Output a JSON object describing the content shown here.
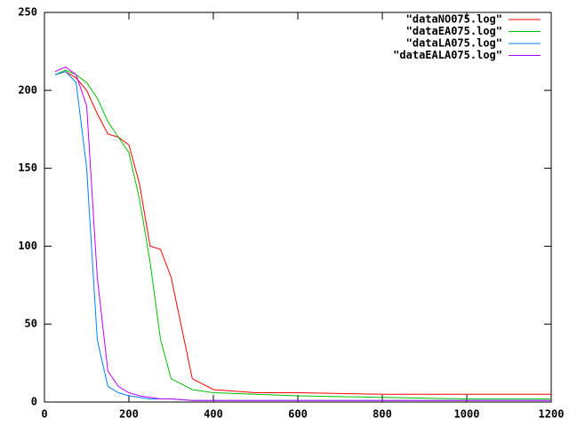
{
  "chart_data": {
    "type": "line",
    "x": [
      25,
      50,
      75,
      100,
      125,
      150,
      175,
      200,
      225,
      250,
      275,
      300,
      350,
      400,
      500,
      600,
      800,
      1000,
      1200
    ],
    "series": [
      {
        "name": "\"dataNO075.log\"",
        "color": "#ff0000",
        "values": [
          210,
          212,
          208,
          200,
          185,
          172,
          170,
          165,
          140,
          100,
          98,
          80,
          15,
          8,
          6,
          6,
          5,
          5,
          5
        ]
      },
      {
        "name": "\"dataEA075.log\"",
        "color": "#00c000",
        "values": [
          210,
          213,
          210,
          205,
          195,
          180,
          170,
          160,
          130,
          90,
          40,
          15,
          8,
          6,
          5,
          4,
          3,
          2,
          2
        ]
      },
      {
        "name": "\"dataLA075.log\"",
        "color": "#0080ff",
        "values": [
          210,
          212,
          205,
          150,
          40,
          10,
          6,
          4,
          3,
          2,
          2,
          2,
          1,
          1,
          1,
          1,
          1,
          1,
          1
        ]
      },
      {
        "name": "\"dataEALA075.log\"",
        "color": "#c000ff",
        "values": [
          212,
          215,
          210,
          190,
          80,
          20,
          10,
          6,
          4,
          3,
          2,
          2,
          1,
          1,
          1,
          1,
          1,
          1,
          1
        ]
      }
    ],
    "xlim": [
      0,
      1200
    ],
    "xticks": [
      0,
      200,
      400,
      600,
      800,
      1000,
      1200
    ],
    "ylim": [
      0,
      250
    ],
    "yticks": [
      0,
      50,
      100,
      150,
      200,
      250
    ],
    "legend": "top-right"
  }
}
